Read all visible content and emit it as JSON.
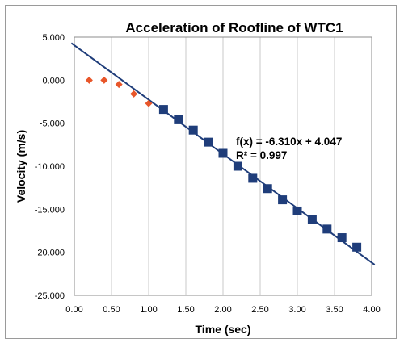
{
  "chart_data": {
    "type": "scatter",
    "title": "Acceleration of Roofline of WTC1",
    "xlabel": "Time (sec)",
    "ylabel": "Velocity (m/s)",
    "xlim": [
      0,
      4
    ],
    "ylim": [
      -25,
      5
    ],
    "x_ticks": [
      "0.00",
      "0.50",
      "1.00",
      "1.50",
      "2.00",
      "2.50",
      "3.00",
      "3.50",
      "4.00"
    ],
    "y_ticks": [
      "5.000",
      "0.000",
      "-5.000",
      "-10.000",
      "-15.000",
      "-20.000",
      "-25.000"
    ],
    "grid": "vertical",
    "series": [
      {
        "marker": "diamond",
        "color": "#e8562a",
        "points": [
          {
            "x": 0.2,
            "y": 0.0
          },
          {
            "x": 0.4,
            "y": 0.0
          },
          {
            "x": 0.6,
            "y": -0.5
          },
          {
            "x": 0.8,
            "y": -1.6
          },
          {
            "x": 1.0,
            "y": -2.7
          }
        ]
      },
      {
        "marker": "square",
        "color": "#1f3d7a",
        "points": [
          {
            "x": 1.2,
            "y": -3.4
          },
          {
            "x": 1.4,
            "y": -4.6
          },
          {
            "x": 1.6,
            "y": -5.8
          },
          {
            "x": 1.8,
            "y": -7.2
          },
          {
            "x": 2.0,
            "y": -8.5
          },
          {
            "x": 2.2,
            "y": -10.0
          },
          {
            "x": 2.4,
            "y": -11.4
          },
          {
            "x": 2.6,
            "y": -12.6
          },
          {
            "x": 2.8,
            "y": -13.9
          },
          {
            "x": 3.0,
            "y": -15.2
          },
          {
            "x": 3.2,
            "y": -16.2
          },
          {
            "x": 3.4,
            "y": -17.3
          },
          {
            "x": 3.6,
            "y": -18.3
          },
          {
            "x": 3.8,
            "y": -19.4
          }
        ]
      }
    ],
    "trendline": {
      "slope": -6.31,
      "intercept": 4.047,
      "color": "#1f3d7a",
      "x_range": [
        0,
        4
      ]
    },
    "annotations": {
      "equation": "f(x) = -6.310x + 4.047",
      "r_squared": "R² = 0.997"
    }
  }
}
